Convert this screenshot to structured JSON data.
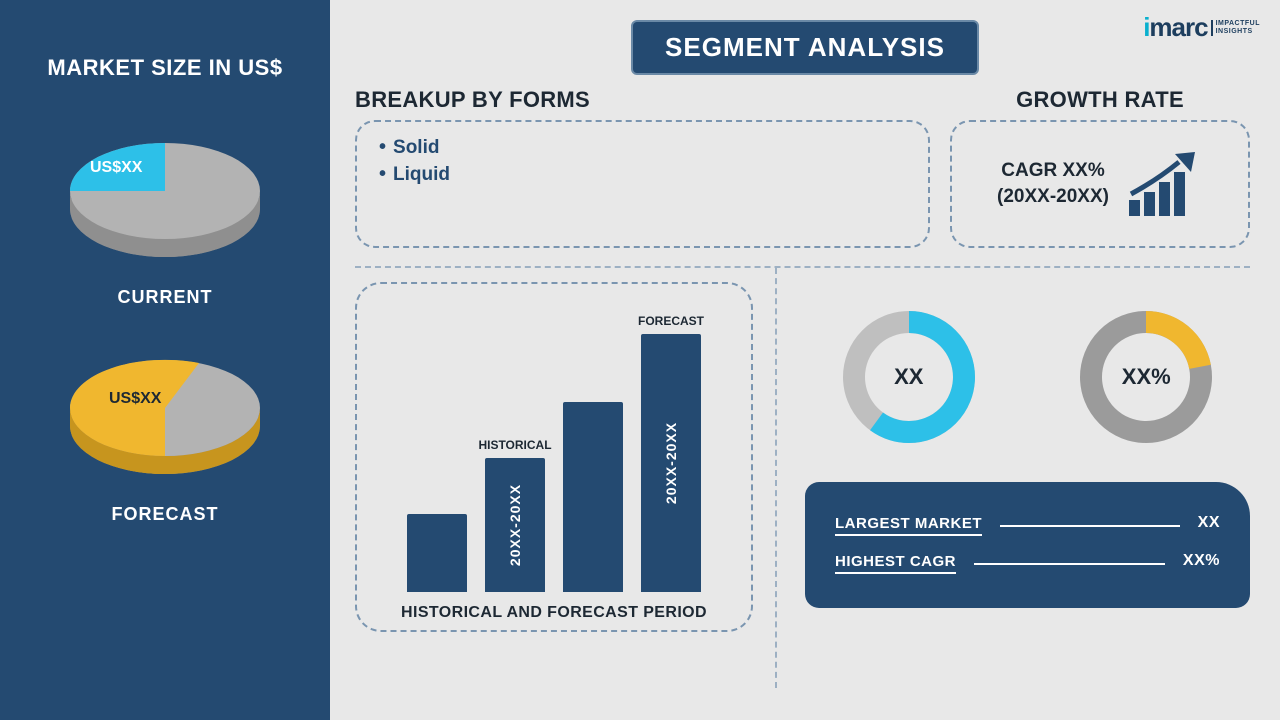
{
  "colors": {
    "primary": "#244a71",
    "gray": "#a9a9a9",
    "gray_dark": "#888888",
    "cyan": "#2dc0e8",
    "cyan_dark": "#1a9fc4",
    "yellow": "#f0b72f",
    "yellow_dark": "#c7951e",
    "bg": "#e8e8e8",
    "dash": "#7a95b0"
  },
  "left_panel": {
    "title": "MARKET SIZE IN US$",
    "pies": [
      {
        "caption": "CURRENT",
        "value_label": "US$XX",
        "slice_pct": 25,
        "slice_color": "#2dc0e8",
        "slice_side": "#1a9fc4",
        "rest_color": "#b3b3b3",
        "rest_side": "#8f8f8f"
      },
      {
        "caption": "FORECAST",
        "value_label": "US$XX",
        "slice_pct": 60,
        "slice_color": "#f0b72f",
        "slice_side": "#c7951e",
        "rest_color": "#b3b3b3",
        "rest_side": "#8f8f8f"
      }
    ]
  },
  "logo": {
    "brand_i": "i",
    "brand_rest": "marc",
    "tagline_l1": "IMPACTFUL",
    "tagline_l2": "INSIGHTS"
  },
  "segment_title": "SEGMENT ANALYSIS",
  "forms": {
    "title": "BREAKUP BY FORMS",
    "items": [
      "Solid",
      "Liquid"
    ]
  },
  "growth": {
    "title": "GROWTH RATE",
    "line1": "CAGR XX%",
    "line2": "(20XX-20XX)",
    "icon_color": "#244a71"
  },
  "hist_chart": {
    "caption": "HISTORICAL AND FORECAST PERIOD",
    "bar_color": "#244a71",
    "bars": [
      {
        "height_pct": 28,
        "above": "",
        "inside": ""
      },
      {
        "height_pct": 48,
        "above": "HISTORICAL",
        "inside": "20XX-20XX"
      },
      {
        "height_pct": 68,
        "above": "",
        "inside": ""
      },
      {
        "height_pct": 92,
        "above": "FORECAST",
        "inside": "20XX-20XX"
      }
    ]
  },
  "donuts": [
    {
      "value_label": "XX",
      "fill_pct": 60,
      "ring_color": "#2dc0e8",
      "track_color": "#bfbfbf",
      "stroke": 22
    },
    {
      "value_label": "XX%",
      "fill_pct": 22,
      "ring_color": "#f0b72f",
      "track_color": "#9b9b9b",
      "stroke": 22
    }
  ],
  "info_card": {
    "rows": [
      {
        "label": "LARGEST MARKET",
        "value": "XX"
      },
      {
        "label": "HIGHEST CAGR",
        "value": "XX%"
      }
    ]
  }
}
